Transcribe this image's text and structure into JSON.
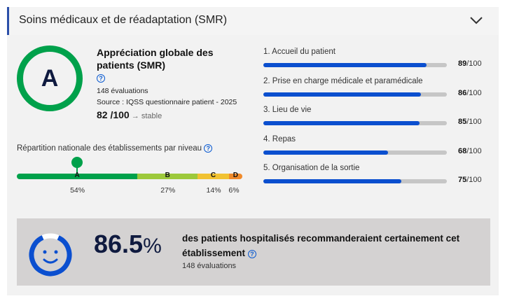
{
  "header": {
    "title": "Soins médicaux et de réadaptation (SMR)",
    "expand_icon": "chevron-down-icon"
  },
  "grade": {
    "letter": "A",
    "color": "#00a14b",
    "title": "Appréciation globale des patients (SMR)",
    "evaluations": "148 évaluations",
    "source": "Source : IQSS questionnaire patient - 2025",
    "score": "82 /100",
    "trend": "stable",
    "help": "?"
  },
  "distribution": {
    "title": "Répartition nationale des établissements par niveau",
    "levels": [
      {
        "label": "A",
        "percent": "54%",
        "value": 54,
        "color": "#00a14b"
      },
      {
        "label": "B",
        "percent": "27%",
        "value": 27,
        "color": "#9dc93b"
      },
      {
        "label": "C",
        "percent": "14%",
        "value": 14,
        "color": "#f1c232"
      },
      {
        "label": "D",
        "percent": "6%",
        "value": 6,
        "color": "#f08a2a"
      }
    ],
    "marker_level": "A"
  },
  "criteria": [
    {
      "label": "1. Accueil du patient",
      "score": "89",
      "max": "/100",
      "value": 89
    },
    {
      "label": "2. Prise en charge médicale et paramédicale",
      "score": "86",
      "max": "/100",
      "value": 86
    },
    {
      "label": "3. Lieu de vie",
      "score": "85",
      "max": "/100",
      "value": 85
    },
    {
      "label": "4. Repas",
      "score": "68",
      "max": "/100",
      "value": 68
    },
    {
      "label": "5. Organisation de la sortie",
      "score": "75",
      "max": "/100",
      "value": 75
    }
  ],
  "recommendation": {
    "value": "86.5",
    "unit": "%",
    "fraction": 0.865,
    "text": "des patients hospitalisés recommanderaient certainement cet établissement",
    "evaluations": "148 évaluations",
    "accent": "#0b4fcf"
  }
}
